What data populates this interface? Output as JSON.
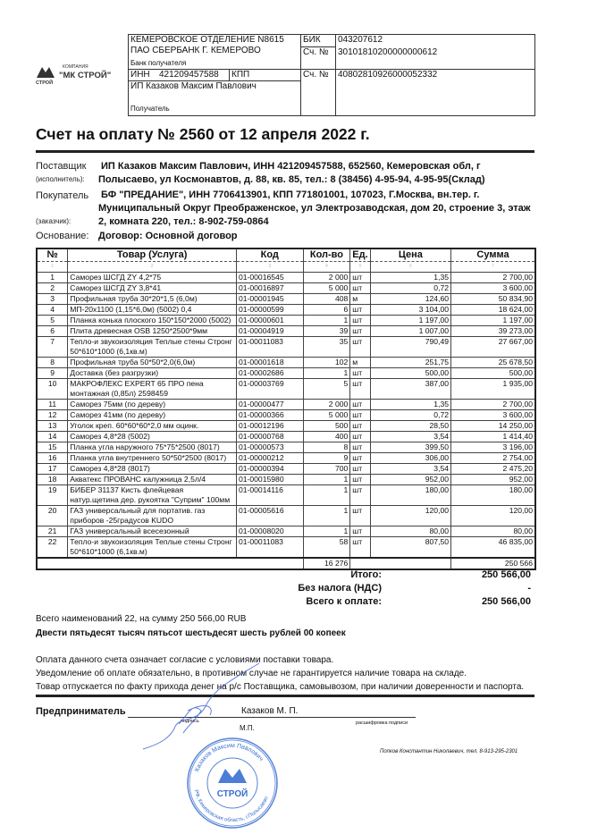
{
  "logo": {
    "small": "КОМПАНИЯ",
    "name": "\"МК СТРОЙ\"",
    "tag": "СТРОЙ"
  },
  "bank": {
    "bank_name_1": "КЕМЕРОВСКОЕ ОТДЕЛЕНИЕ N8615",
    "bank_name_2": "ПАО СБЕРБАНК Г. КЕМЕРОВО",
    "bank_label": "Банк получателя",
    "bik_label": "БИК",
    "bik": "043207612",
    "corr_label": "Сч. №",
    "corr_account": "30101810200000000612",
    "inn_label": "ИНН",
    "inn": "421209457588",
    "kpp_label": "КПП",
    "account_label": "Сч. №",
    "account": "40802810926000052332",
    "recipient": "ИП Казаков Максим Павлович",
    "recipient_label": "Получатель"
  },
  "title": "Счет на оплату № 2560 от 12 апреля 2022 г.",
  "supplier": {
    "label": "Поставщик",
    "sublabel": "(исполнитель):",
    "line1": "ИП Казаков Максим Павлович,  ИНН 421209457588,  652560, Кемеровская обл, г",
    "line2": "Полысаево, ул Космонавтов, д. 88, кв. 85,  тел.: 8 (38456) 4-95-94, 4-95-95(Склад)"
  },
  "buyer": {
    "label": "Покупатель",
    "sublabel": "(заказчик):",
    "line1": "БФ \"ПРЕДАНИЕ\",  ИНН 7706413901,  КПП 771801001,  107023, Г.Москва, вн.тер. г.",
    "line2": "Муниципальный Округ Преображенское, ул Электрозаводская, дом 20, строение 3, этаж",
    "line3": "2, комната 220,  тел.: 8-902-759-0864"
  },
  "basis": {
    "label": "Основание:",
    "value": "Договор: Основной договор"
  },
  "table": {
    "headers": [
      "№",
      "Товар (Услуга)",
      "Код",
      "Кол-во",
      "Ед.",
      "Цена",
      "Сумма"
    ],
    "index": [
      "1",
      "2",
      "3",
      "4",
      "5",
      "6",
      "7"
    ],
    "rows": [
      [
        "1",
        "Саморез ШСГД ZY 4,2*75",
        "01-00016545",
        "2 000",
        "шт",
        "1,35",
        "2 700,00"
      ],
      [
        "2",
        "Саморез ШСГД ZY 3,8*41",
        "01-00016897",
        "5 000",
        "шт",
        "0,72",
        "3 600,00"
      ],
      [
        "3",
        "Профильная труба 30*20*1,5 (6,0м)",
        "01-00001945",
        "408",
        "м",
        "124,60",
        "50 834,90"
      ],
      [
        "4",
        "МП-20х1100 (1,15*6,0м) (5002) 0,4",
        "01-00000599",
        "6",
        "шт",
        "3 104,00",
        "18 624,00"
      ],
      [
        "5",
        "Планка конька плоского 150*150*2000 (5002)",
        "01-00000601",
        "1",
        "шт",
        "1 197,00",
        "1 197,00"
      ],
      [
        "6",
        "Плита древесная OSB 1250*2500*9мм",
        "01-00004919",
        "39",
        "шт",
        "1 007,00",
        "39 273,00"
      ],
      [
        "7",
        "Тепло-и звукоизоляция Теплые стены Стронг 50*610*1000 (6,1кв.м)",
        "01-00011083",
        "35",
        "шт",
        "790,49",
        "27 667,00"
      ],
      [
        "8",
        "Профильная труба 50*50*2,0(6,0м)",
        "01-00001618",
        "102",
        "м",
        "251,75",
        "25 678,50"
      ],
      [
        "9",
        "Доставка (без разгрузки)",
        "01-00002686",
        "1",
        "шт",
        "500,00",
        "500,00"
      ],
      [
        "10",
        "МАКРОФЛЕКС EXPERT 65 ПРО пена монтажная (0,85л) 2598459",
        "01-00003769",
        "5",
        "шт",
        "387,00",
        "1 935,00"
      ],
      [
        "11",
        "Саморез 75мм (по дереву)",
        "01-00000477",
        "2 000",
        "шт",
        "1,35",
        "2 700,00"
      ],
      [
        "12",
        "Саморез 41мм (по дереву)",
        "01-00000366",
        "5 000",
        "шт",
        "0,72",
        "3 600,00"
      ],
      [
        "13",
        "Уголок креп. 60*60*60*2,0 мм оцинк.",
        "01-00012196",
        "500",
        "шт",
        "28,50",
        "14 250,00"
      ],
      [
        "14",
        "Саморез 4,8*28 (5002)",
        "01-00000768",
        "400",
        "шт",
        "3,54",
        "1 414,40"
      ],
      [
        "15",
        "Планка угла наружного 75*75*2500 (8017)",
        "01-00000573",
        "8",
        "шт",
        "399,50",
        "3 196,00"
      ],
      [
        "16",
        "Планка угла внутреннего 50*50*2500 (8017)",
        "01-00000212",
        "9",
        "шт",
        "306,00",
        "2 754,00"
      ],
      [
        "17",
        "Саморез 4,8*28 (8017)",
        "01-00000394",
        "700",
        "шт",
        "3,54",
        "2 475,20"
      ],
      [
        "18",
        "Акватекс ПРОВАНС калужница 2,5л/4",
        "01-00015980",
        "1",
        "шт",
        "952,00",
        "952,00"
      ],
      [
        "19",
        "БИБЕР 31137 Кисть флейцевая натур.щетина дер. рукоятка \"Суприм\" 100мм",
        "01-00014116",
        "1",
        "шт",
        "180,00",
        "180,00"
      ],
      [
        "20",
        "ГАЗ универсальный для портатив. газ приборов -25градусов KUDO",
        "01-00005616",
        "1",
        "шт",
        "120,00",
        "120,00"
      ],
      [
        "21",
        "ГАЗ универсальный всесезонный",
        "01-00008020",
        "1",
        "шт",
        "80,00",
        "80,00"
      ],
      [
        "22",
        "Тепло-и звукоизоляция Теплые стены Стронг 50*610*1000 (6,1кв.м)",
        "01-00011083",
        "58",
        "шт",
        "807,50",
        "46 835,00"
      ]
    ],
    "total_qty": "16 276",
    "total_sum": "250 566"
  },
  "totals": {
    "itogo_label": "Итого:",
    "itogo": "250 566,00",
    "nds_label": "Без налога (НДС)",
    "nds": "-",
    "due_label": "Всего к оплате:",
    "due": "250 566,00"
  },
  "summary": {
    "count_line": "Всего наименований 22, на сумму 250 566,00 RUB",
    "words": "Двести пятьдесят тысяч пятьсот шестьдесят шесть рублей 00 копеек"
  },
  "notes": [
    "Оплата данного счета означает согласие с условиями поставки товара.",
    "Уведомление об оплате обязательно, в противном случае не гарантируется наличие товара на складе.",
    "Товар отпускается по факту прихода денег на р/с Поставщика, самовывозом, при наличии доверенности и паспорта."
  ],
  "signature": {
    "role": "Предприниматель",
    "name": "Казаков М. П.",
    "sign_caption": "подпись",
    "decode_caption": "расшифровка подписи",
    "mp": "М.П.",
    "contact": "Попков Константин Николаевич, тел. 8-913-295-2301"
  },
  "stamp": {
    "outer": "Индивидуальный предприниматель Казаков Максим Павлович",
    "inner": "ОГРНИП 312421210800025 ИНН 421209457588 РФ, Кемеровская область, г.Полысаево",
    "logo": "СТРОЙ"
  },
  "colors": {
    "stamp": "#3a6fd1",
    "text": "#111111"
  }
}
